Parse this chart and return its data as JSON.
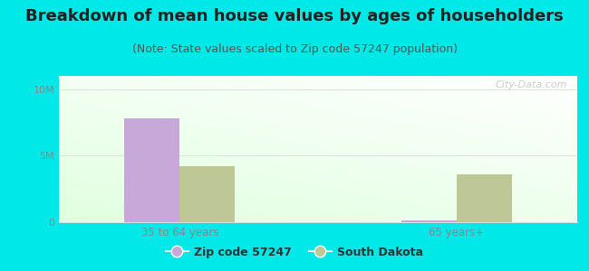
{
  "title": "Breakdown of mean house values by ages of householders",
  "subtitle": "(Note: State values scaled to Zip code 57247 population)",
  "categories": [
    "35 to 64 years",
    "65 years+"
  ],
  "zip_values": [
    7800000,
    120000
  ],
  "state_values": [
    4200000,
    3600000
  ],
  "ylim": [
    0,
    11000000
  ],
  "ytick_values": [
    0,
    5000000,
    10000000
  ],
  "ytick_labels": [
    "0",
    "5M",
    "10M"
  ],
  "zip_color": "#c8a8d8",
  "state_color": "#bec897",
  "background_outer": "#00e8e8",
  "title_color": "#222222",
  "subtitle_color": "#555555",
  "title_fontsize": 13,
  "subtitle_fontsize": 9,
  "legend_zip_label": "Zip code 57247",
  "legend_state_label": "South Dakota",
  "bar_width": 0.32,
  "group_positions": [
    1.0,
    2.6
  ],
  "watermark": "City-Data.com",
  "grid_color": "#dddddd",
  "tick_label_color": "#888888"
}
